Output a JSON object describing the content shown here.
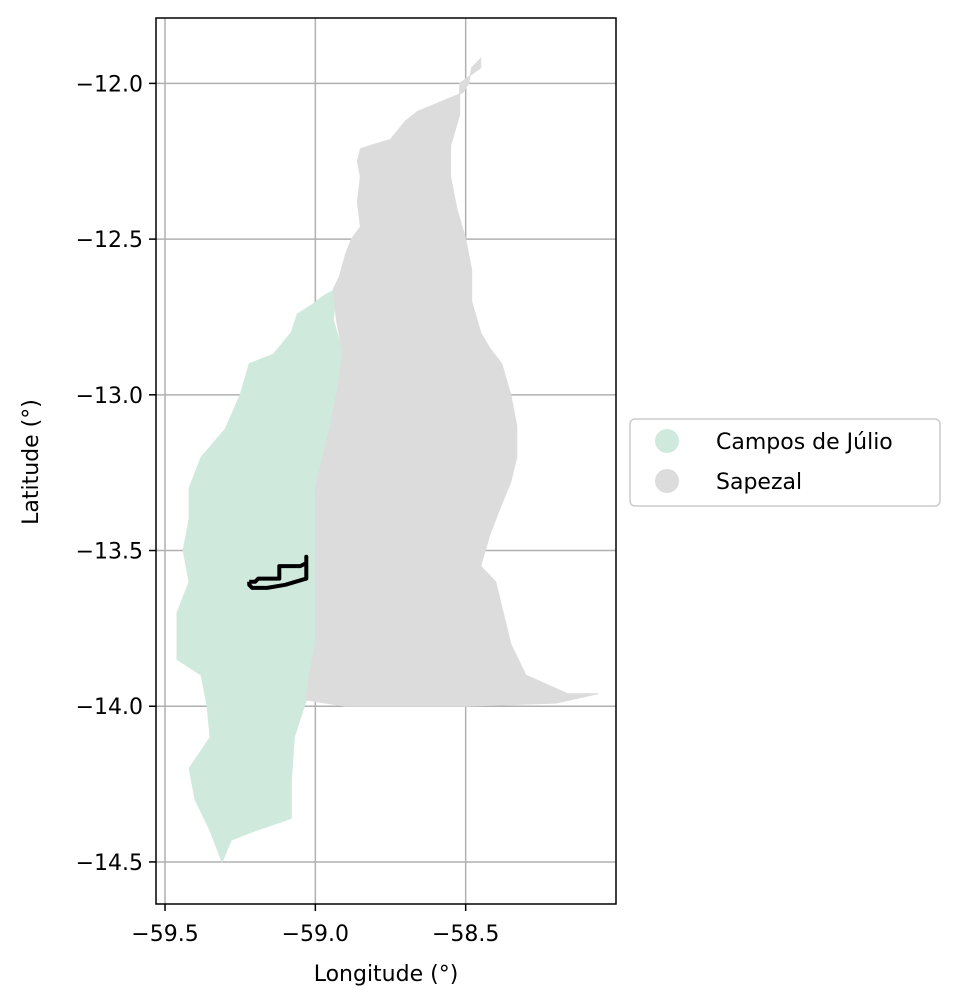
{
  "chart_data": {
    "type": "map",
    "xlabel": "Longitude (°)",
    "ylabel": "Latitude (°)",
    "xlim": [
      -59.53,
      -58.0
    ],
    "ylim": [
      -14.635,
      -11.79
    ],
    "grid": true,
    "xticks": [
      -59.5,
      -59.0,
      -58.5
    ],
    "xtick_labels": [
      "−59.5",
      "−59.0",
      "−58.5"
    ],
    "yticks": [
      -12.0,
      -12.5,
      -13.0,
      -13.5,
      -14.0,
      -14.5
    ],
    "ytick_labels": [
      "−12.0",
      "−12.5",
      "−13.0",
      "−13.5",
      "−14.0",
      "−14.5"
    ],
    "legend_position": "center-left outside right",
    "regions": [
      {
        "name": "Campos de Júlio",
        "color": "#cfeadd",
        "outline": [
          [
            -59.01,
            -12.71
          ],
          [
            -59.06,
            -12.74
          ],
          [
            -59.08,
            -12.8
          ],
          [
            -59.14,
            -12.87
          ],
          [
            -59.22,
            -12.9
          ],
          [
            -59.25,
            -13.0
          ],
          [
            -59.3,
            -13.11
          ],
          [
            -59.38,
            -13.2
          ],
          [
            -59.42,
            -13.3
          ],
          [
            -59.42,
            -13.4
          ],
          [
            -59.44,
            -13.5
          ],
          [
            -59.42,
            -13.6
          ],
          [
            -59.46,
            -13.7
          ],
          [
            -59.46,
            -13.85
          ],
          [
            -59.38,
            -13.9
          ],
          [
            -59.36,
            -14.0
          ],
          [
            -59.35,
            -14.1
          ],
          [
            -59.42,
            -14.2
          ],
          [
            -59.4,
            -14.3
          ],
          [
            -59.35,
            -14.4
          ],
          [
            -59.31,
            -14.5
          ],
          [
            -59.28,
            -14.43
          ],
          [
            -59.2,
            -14.4
          ],
          [
            -59.08,
            -14.36
          ],
          [
            -59.08,
            -14.24
          ],
          [
            -59.07,
            -14.1
          ],
          [
            -59.03,
            -13.98
          ],
          [
            -59.02,
            -13.9
          ],
          [
            -59.0,
            -13.8
          ],
          [
            -59.0,
            -13.6
          ],
          [
            -59.0,
            -13.3
          ],
          [
            -58.95,
            -13.1
          ],
          [
            -58.92,
            -12.95
          ],
          [
            -58.91,
            -12.86
          ],
          [
            -58.94,
            -12.76
          ],
          [
            -58.93,
            -12.66
          ],
          [
            -58.97,
            -12.68
          ]
        ]
      },
      {
        "name": "Sapezal",
        "color": "#dcdcdc",
        "outline": [
          [
            -58.45,
            -11.92
          ],
          [
            -58.48,
            -11.95
          ],
          [
            -58.49,
            -12.0
          ],
          [
            -58.51,
            -12.03
          ],
          [
            -58.56,
            -12.05
          ],
          [
            -58.66,
            -12.09
          ],
          [
            -58.7,
            -12.12
          ],
          [
            -58.75,
            -12.18
          ],
          [
            -58.82,
            -12.2
          ],
          [
            -58.85,
            -12.21
          ],
          [
            -58.86,
            -12.25
          ],
          [
            -58.85,
            -12.3
          ],
          [
            -58.86,
            -12.38
          ],
          [
            -58.85,
            -12.46
          ],
          [
            -58.88,
            -12.5
          ],
          [
            -58.9,
            -12.55
          ],
          [
            -58.92,
            -12.62
          ],
          [
            -58.94,
            -12.66
          ],
          [
            -58.93,
            -12.76
          ],
          [
            -58.91,
            -12.86
          ],
          [
            -58.92,
            -12.95
          ],
          [
            -58.95,
            -13.1
          ],
          [
            -59.0,
            -13.3
          ],
          [
            -59.0,
            -13.6
          ],
          [
            -59.0,
            -13.8
          ],
          [
            -59.02,
            -13.9
          ],
          [
            -59.03,
            -13.98
          ],
          [
            -58.9,
            -14.0
          ],
          [
            -58.7,
            -14.0
          ],
          [
            -58.5,
            -14.0
          ],
          [
            -58.2,
            -13.99
          ],
          [
            -58.06,
            -13.96
          ],
          [
            -58.16,
            -13.96
          ],
          [
            -58.3,
            -13.9
          ],
          [
            -58.35,
            -13.8
          ],
          [
            -58.4,
            -13.6
          ],
          [
            -58.45,
            -13.55
          ],
          [
            -58.42,
            -13.45
          ],
          [
            -58.38,
            -13.35
          ],
          [
            -58.35,
            -13.28
          ],
          [
            -58.33,
            -13.2
          ],
          [
            -58.33,
            -13.1
          ],
          [
            -58.35,
            -13.0
          ],
          [
            -58.38,
            -12.9
          ],
          [
            -58.42,
            -12.85
          ],
          [
            -58.45,
            -12.8
          ],
          [
            -58.48,
            -12.7
          ],
          [
            -58.48,
            -12.6
          ],
          [
            -58.5,
            -12.5
          ],
          [
            -58.53,
            -12.4
          ],
          [
            -58.55,
            -12.3
          ],
          [
            -58.55,
            -12.2
          ],
          [
            -58.52,
            -12.1
          ],
          [
            -58.52,
            -12.0
          ],
          [
            -58.45,
            -11.95
          ]
        ]
      }
    ],
    "boundary_line": {
      "color": "#000000",
      "path": [
        [
          -59.22,
          -13.6
        ],
        [
          -59.2,
          -13.6
        ],
        [
          -59.19,
          -13.59
        ],
        [
          -59.12,
          -13.59
        ],
        [
          -59.12,
          -13.55
        ],
        [
          -59.05,
          -13.55
        ],
        [
          -59.03,
          -13.54
        ],
        [
          -59.03,
          -13.52
        ],
        [
          -59.03,
          -13.55
        ],
        [
          -59.03,
          -13.58
        ],
        [
          -59.03,
          -13.59
        ],
        [
          -59.1,
          -13.61
        ],
        [
          -59.16,
          -13.62
        ],
        [
          -59.21,
          -13.62
        ],
        [
          -59.22,
          -13.61
        ],
        [
          -59.22,
          -13.6
        ]
      ]
    }
  }
}
